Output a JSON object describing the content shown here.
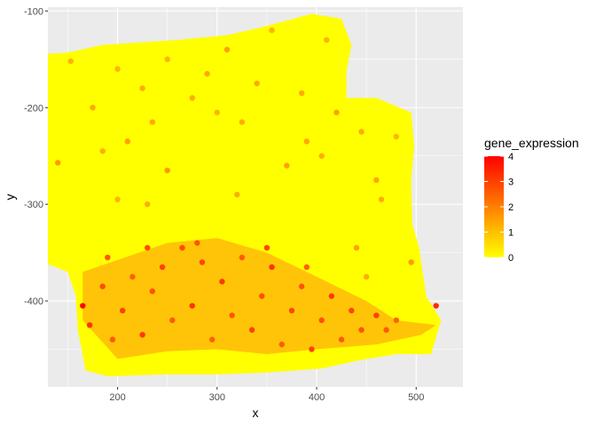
{
  "chart_data": {
    "type": "scatter",
    "title": "",
    "xlabel": "x",
    "ylabel": "y",
    "xlim": [
      130,
      547
    ],
    "ylim": [
      -489,
      -96
    ],
    "x_ticks": [
      {
        "value": 200,
        "label": "200"
      },
      {
        "value": 300,
        "label": "300"
      },
      {
        "value": 400,
        "label": "400"
      },
      {
        "value": 500,
        "label": "500"
      }
    ],
    "y_ticks": [
      {
        "value": -100,
        "label": "-100"
      },
      {
        "value": -200,
        "label": "-200"
      },
      {
        "value": -300,
        "label": "-300"
      },
      {
        "value": -400,
        "label": "-400"
      }
    ],
    "grid": true,
    "legend": {
      "title": "gene_expression",
      "position": "right",
      "min": 0,
      "max": 4,
      "breaks": [
        {
          "value": 0,
          "label": "0"
        },
        {
          "value": 1,
          "label": "1"
        },
        {
          "value": 2,
          "label": "2"
        },
        {
          "value": 3,
          "label": "3"
        },
        {
          "value": 4,
          "label": "4"
        }
      ],
      "low_color": "#FFFF00",
      "high_color": "#FF0000"
    },
    "tissue_outline": [
      [
        120,
        -145
      ],
      [
        150,
        -143
      ],
      [
        185,
        -135
      ],
      [
        230,
        -132
      ],
      [
        260,
        -130
      ],
      [
        310,
        -125
      ],
      [
        340,
        -118
      ],
      [
        370,
        -110
      ],
      [
        395,
        -103
      ],
      [
        425,
        -108
      ],
      [
        435,
        -135
      ],
      [
        430,
        -162
      ],
      [
        430,
        -190
      ],
      [
        460,
        -190
      ],
      [
        495,
        -205
      ],
      [
        498,
        -240
      ],
      [
        495,
        -275
      ],
      [
        496,
        -320
      ],
      [
        503,
        -345
      ],
      [
        510,
        -395
      ],
      [
        525,
        -420
      ],
      [
        515,
        -455
      ],
      [
        480,
        -455
      ],
      [
        440,
        -462
      ],
      [
        405,
        -470
      ],
      [
        350,
        -474
      ],
      [
        300,
        -476
      ],
      [
        250,
        -476
      ],
      [
        190,
        -478
      ],
      [
        168,
        -472
      ],
      [
        160,
        -430
      ],
      [
        158,
        -395
      ],
      [
        150,
        -370
      ],
      [
        125,
        -360
      ],
      [
        108,
        -355
      ],
      [
        100,
        -330
      ],
      [
        102,
        -280
      ],
      [
        100,
        -250
      ],
      [
        118,
        -225
      ],
      [
        115,
        -180
      ]
    ],
    "tissue_islands": [
      {
        "x": 145,
        "y": -320,
        "r": 9
      },
      {
        "x": 137,
        "y": -257,
        "r": 6
      }
    ],
    "hot_region": {
      "x": [
        165,
        250,
        300,
        350,
        400,
        450,
        480,
        520,
        505,
        460,
        400,
        350,
        300,
        250,
        200,
        165
      ],
      "y": [
        -370,
        -340,
        -335,
        -350,
        -375,
        -400,
        -420,
        -425,
        -435,
        -445,
        -450,
        -455,
        -450,
        -452,
        -460,
        -420
      ]
    },
    "highlight_points": [
      {
        "x": 140,
        "y": -257,
        "v": 1.6
      },
      {
        "x": 153,
        "y": -152,
        "v": 1.2
      },
      {
        "x": 175,
        "y": -200,
        "v": 1.4
      },
      {
        "x": 185,
        "y": -245,
        "v": 1.3
      },
      {
        "x": 200,
        "y": -160,
        "v": 1.2
      },
      {
        "x": 210,
        "y": -235,
        "v": 1.5
      },
      {
        "x": 225,
        "y": -180,
        "v": 1.3
      },
      {
        "x": 235,
        "y": -215,
        "v": 1.4
      },
      {
        "x": 250,
        "y": -265,
        "v": 1.6
      },
      {
        "x": 250,
        "y": -150,
        "v": 1.2
      },
      {
        "x": 275,
        "y": -190,
        "v": 1.3
      },
      {
        "x": 290,
        "y": -165,
        "v": 1.4
      },
      {
        "x": 300,
        "y": -205,
        "v": 1.2
      },
      {
        "x": 310,
        "y": -140,
        "v": 1.5
      },
      {
        "x": 325,
        "y": -215,
        "v": 1.3
      },
      {
        "x": 340,
        "y": -175,
        "v": 1.4
      },
      {
        "x": 355,
        "y": -120,
        "v": 1.2
      },
      {
        "x": 370,
        "y": -260,
        "v": 1.5
      },
      {
        "x": 385,
        "y": -185,
        "v": 1.3
      },
      {
        "x": 390,
        "y": -235,
        "v": 1.4
      },
      {
        "x": 405,
        "y": -250,
        "v": 1.3
      },
      {
        "x": 410,
        "y": -130,
        "v": 1.2
      },
      {
        "x": 420,
        "y": -205,
        "v": 1.5
      },
      {
        "x": 445,
        "y": -225,
        "v": 1.3
      },
      {
        "x": 460,
        "y": -275,
        "v": 1.4
      },
      {
        "x": 465,
        "y": -295,
        "v": 1.3
      },
      {
        "x": 480,
        "y": -230,
        "v": 1.2
      },
      {
        "x": 440,
        "y": -345,
        "v": 1.5
      },
      {
        "x": 450,
        "y": -375,
        "v": 1.3
      },
      {
        "x": 495,
        "y": -360,
        "v": 1.6
      },
      {
        "x": 320,
        "y": -290,
        "v": 1.3
      },
      {
        "x": 200,
        "y": -295,
        "v": 1.2
      },
      {
        "x": 230,
        "y": -300,
        "v": 1.3
      },
      {
        "x": 165,
        "y": -405,
        "v": 4.0
      },
      {
        "x": 172,
        "y": -425,
        "v": 3.2
      },
      {
        "x": 185,
        "y": -385,
        "v": 2.8
      },
      {
        "x": 195,
        "y": -440,
        "v": 2.6
      },
      {
        "x": 205,
        "y": -410,
        "v": 3.0
      },
      {
        "x": 215,
        "y": -375,
        "v": 2.5
      },
      {
        "x": 225,
        "y": -435,
        "v": 3.1
      },
      {
        "x": 235,
        "y": -390,
        "v": 2.7
      },
      {
        "x": 245,
        "y": -365,
        "v": 3.0
      },
      {
        "x": 255,
        "y": -420,
        "v": 2.6
      },
      {
        "x": 265,
        "y": -345,
        "v": 2.8
      },
      {
        "x": 275,
        "y": -405,
        "v": 3.2
      },
      {
        "x": 285,
        "y": -360,
        "v": 2.9
      },
      {
        "x": 295,
        "y": -440,
        "v": 2.5
      },
      {
        "x": 305,
        "y": -380,
        "v": 3.1
      },
      {
        "x": 315,
        "y": -415,
        "v": 2.7
      },
      {
        "x": 325,
        "y": -355,
        "v": 2.6
      },
      {
        "x": 335,
        "y": -430,
        "v": 3.0
      },
      {
        "x": 345,
        "y": -395,
        "v": 2.8
      },
      {
        "x": 355,
        "y": -365,
        "v": 3.2
      },
      {
        "x": 365,
        "y": -445,
        "v": 2.6
      },
      {
        "x": 375,
        "y": -410,
        "v": 2.9
      },
      {
        "x": 385,
        "y": -385,
        "v": 2.7
      },
      {
        "x": 395,
        "y": -450,
        "v": 3.0
      },
      {
        "x": 405,
        "y": -420,
        "v": 2.8
      },
      {
        "x": 415,
        "y": -395,
        "v": 3.1
      },
      {
        "x": 425,
        "y": -440,
        "v": 2.6
      },
      {
        "x": 435,
        "y": -410,
        "v": 2.9
      },
      {
        "x": 445,
        "y": -430,
        "v": 2.7
      },
      {
        "x": 460,
        "y": -415,
        "v": 3.0
      },
      {
        "x": 470,
        "y": -430,
        "v": 2.6
      },
      {
        "x": 480,
        "y": -420,
        "v": 2.5
      },
      {
        "x": 520,
        "y": -405,
        "v": 3.3
      },
      {
        "x": 190,
        "y": -355,
        "v": 2.6
      },
      {
        "x": 230,
        "y": -345,
        "v": 2.8
      },
      {
        "x": 280,
        "y": -340,
        "v": 2.7
      },
      {
        "x": 350,
        "y": -345,
        "v": 2.9
      },
      {
        "x": 390,
        "y": -365,
        "v": 2.5
      }
    ]
  }
}
